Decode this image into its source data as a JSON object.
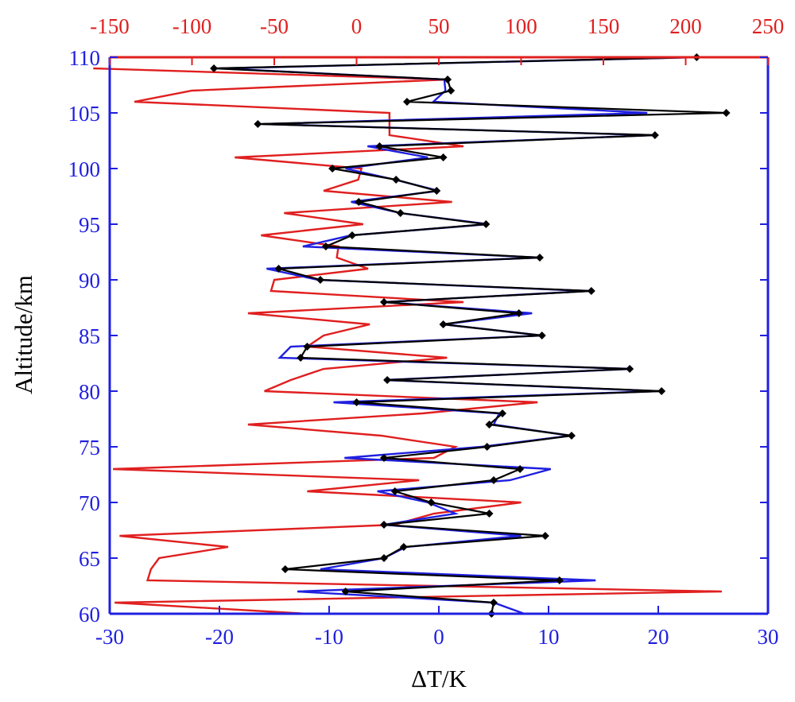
{
  "chart_data": {
    "type": "line",
    "title": "",
    "xlabel": "ΔT/K",
    "ylabel": "Altitude/km",
    "xlim": [
      -30,
      30
    ],
    "ylim": [
      60,
      110
    ],
    "xlim_top": [
      -150,
      250
    ],
    "x_ticks": [
      "-30",
      "-20",
      "-10",
      "0",
      "10",
      "20",
      "30"
    ],
    "x_top_ticks": [
      "-150",
      "-100",
      "-50",
      "0",
      "50",
      "100",
      "150",
      "200",
      "250"
    ],
    "y_ticks": [
      "60",
      "65",
      "70",
      "75",
      "80",
      "85",
      "90",
      "95",
      "100",
      "105",
      "110"
    ],
    "grid": false,
    "legend": "none",
    "colors": {
      "axis_primary": "#1f1fe0",
      "axis_top": "#e01f1f",
      "marker_series": "#000000"
    },
    "series": [
      {
        "color": "#000000",
        "axis": "bottom",
        "markers": "diamond",
        "points": [
          {
            "y": 60,
            "x": 4.8
          },
          {
            "y": 61,
            "x": 5.0
          },
          {
            "y": 62,
            "x": -8.5
          },
          {
            "y": 63,
            "x": 11.0
          },
          {
            "y": 64,
            "x": -14.0
          },
          {
            "y": 65,
            "x": -5.0
          },
          {
            "y": 66,
            "x": -3.2
          },
          {
            "y": 67,
            "x": 9.7
          },
          {
            "y": 68,
            "x": -5.0
          },
          {
            "y": 69,
            "x": 4.6
          },
          {
            "y": 70,
            "x": -0.7
          },
          {
            "y": 71,
            "x": -4.0
          },
          {
            "y": 72,
            "x": 5.0
          },
          {
            "y": 73,
            "x": 7.4
          },
          {
            "y": 74,
            "x": -5.0
          },
          {
            "y": 75,
            "x": 4.4
          },
          {
            "y": 76,
            "x": 12.1
          },
          {
            "y": 77,
            "x": 4.6
          },
          {
            "y": 78,
            "x": 5.8
          },
          {
            "y": 79,
            "x": -7.5
          },
          {
            "y": 80,
            "x": 20.3
          },
          {
            "y": 81,
            "x": -4.7
          },
          {
            "y": 82,
            "x": 17.4
          },
          {
            "y": 83,
            "x": -12.6
          },
          {
            "y": 84,
            "x": -12.0
          },
          {
            "y": 85,
            "x": 9.4
          },
          {
            "y": 86,
            "x": 0.4
          },
          {
            "y": 87,
            "x": 7.3
          },
          {
            "y": 88,
            "x": -5.0
          },
          {
            "y": 89,
            "x": 13.9
          },
          {
            "y": 90,
            "x": -10.8
          },
          {
            "y": 91,
            "x": -14.6
          },
          {
            "y": 92,
            "x": 9.2
          },
          {
            "y": 93,
            "x": -10.3
          },
          {
            "y": 94,
            "x": -7.9
          },
          {
            "y": 95,
            "x": 4.3
          },
          {
            "y": 96,
            "x": -3.5
          },
          {
            "y": 97,
            "x": -7.3
          },
          {
            "y": 98,
            "x": -0.2
          },
          {
            "y": 99,
            "x": -3.9
          },
          {
            "y": 100,
            "x": -9.7
          },
          {
            "y": 101,
            "x": 0.4
          },
          {
            "y": 102,
            "x": -5.4
          },
          {
            "y": 103,
            "x": 19.7
          },
          {
            "y": 104,
            "x": -16.5
          },
          {
            "y": 105,
            "x": 26.2
          },
          {
            "y": 106,
            "x": -2.9
          },
          {
            "y": 107,
            "x": 1.1
          },
          {
            "y": 108,
            "x": 0.8
          },
          {
            "y": 109,
            "x": -20.5
          },
          {
            "y": 110,
            "x": 23.5
          }
        ]
      },
      {
        "color": "#1f1fe0",
        "axis": "bottom",
        "markers": "none",
        "points": [
          {
            "y": 60,
            "x": 7.8
          },
          {
            "y": 61,
            "x": 5.0
          },
          {
            "y": 62,
            "x": -12.9
          },
          {
            "y": 63,
            "x": 14.3
          },
          {
            "y": 64,
            "x": -10.8
          },
          {
            "y": 65,
            "x": -5.0
          },
          {
            "y": 66,
            "x": -3.0
          },
          {
            "y": 67,
            "x": 7.5
          },
          {
            "y": 68,
            "x": -5.0
          },
          {
            "y": 69,
            "x": 1.5
          },
          {
            "y": 70,
            "x": -1.0
          },
          {
            "y": 71,
            "x": -5.6
          },
          {
            "y": 72,
            "x": 6.5
          },
          {
            "y": 73,
            "x": 10.2
          },
          {
            "y": 74,
            "x": -8.6
          },
          {
            "y": 75,
            "x": 3.9
          },
          {
            "y": 76,
            "x": 12.0
          },
          {
            "y": 77,
            "x": 5.0
          },
          {
            "y": 78,
            "x": 5.5
          },
          {
            "y": 79,
            "x": -9.6
          },
          {
            "y": 80,
            "x": 20.0
          },
          {
            "y": 81,
            "x": -5.0
          },
          {
            "y": 82,
            "x": 17.6
          },
          {
            "y": 83,
            "x": -14.5
          },
          {
            "y": 84,
            "x": -13.5
          },
          {
            "y": 85,
            "x": 9.4
          },
          {
            "y": 86,
            "x": 0.4
          },
          {
            "y": 87,
            "x": 8.5
          },
          {
            "y": 88,
            "x": -5.0
          },
          {
            "y": 89,
            "x": 13.7
          },
          {
            "y": 90,
            "x": -11.0
          },
          {
            "y": 91,
            "x": -15.7
          },
          {
            "y": 92,
            "x": 9.2
          },
          {
            "y": 93,
            "x": -12.4
          },
          {
            "y": 94,
            "x": -8.0
          },
          {
            "y": 95,
            "x": 4.5
          },
          {
            "y": 96,
            "x": -3.5
          },
          {
            "y": 97,
            "x": -8.0
          },
          {
            "y": 98,
            "x": 0.0
          },
          {
            "y": 99,
            "x": -4.0
          },
          {
            "y": 100,
            "x": -8.5
          },
          {
            "y": 101,
            "x": -1.0
          },
          {
            "y": 102,
            "x": -6.5
          },
          {
            "y": 103,
            "x": 19.6
          },
          {
            "y": 104,
            "x": -16.0
          },
          {
            "y": 105,
            "x": 19.0
          },
          {
            "y": 106,
            "x": -0.5
          },
          {
            "y": 107,
            "x": 0.6
          },
          {
            "y": 108,
            "x": 0.5
          },
          {
            "y": 109,
            "x": -20.0
          },
          {
            "y": 110,
            "x": 23.5
          }
        ]
      },
      {
        "color": "#e01f1f",
        "axis": "top",
        "markers": "none",
        "points": [
          {
            "y": 60,
            "x": -30
          },
          {
            "y": 61,
            "x": -147
          },
          {
            "y": 62,
            "x": 222
          },
          {
            "y": 63,
            "x": -127
          },
          {
            "y": 64,
            "x": -125
          },
          {
            "y": 65,
            "x": -120
          },
          {
            "y": 66,
            "x": -78
          },
          {
            "y": 67,
            "x": -144
          },
          {
            "y": 68,
            "x": 23
          },
          {
            "y": 69,
            "x": 47
          },
          {
            "y": 70,
            "x": 100
          },
          {
            "y": 71,
            "x": -30
          },
          {
            "y": 72,
            "x": 38
          },
          {
            "y": 73,
            "x": -148
          },
          {
            "y": 74,
            "x": 47
          },
          {
            "y": 75,
            "x": 60
          },
          {
            "y": 76,
            "x": 15
          },
          {
            "y": 77,
            "x": -66
          },
          {
            "y": 78,
            "x": 40
          },
          {
            "y": 79,
            "x": 110
          },
          {
            "y": 80,
            "x": -56
          },
          {
            "y": 81,
            "x": -40
          },
          {
            "y": 82,
            "x": -20
          },
          {
            "y": 83,
            "x": 55
          },
          {
            "y": 84,
            "x": -30
          },
          {
            "y": 85,
            "x": -20
          },
          {
            "y": 86,
            "x": 8
          },
          {
            "y": 87,
            "x": -66
          },
          {
            "y": 88,
            "x": 65
          },
          {
            "y": 89,
            "x": -52
          },
          {
            "y": 90,
            "x": -50
          },
          {
            "y": 91,
            "x": 7
          },
          {
            "y": 92,
            "x": -12
          },
          {
            "y": 93,
            "x": -11
          },
          {
            "y": 94,
            "x": -58
          },
          {
            "y": 95,
            "x": 4
          },
          {
            "y": 96,
            "x": -44
          },
          {
            "y": 97,
            "x": 58
          },
          {
            "y": 98,
            "x": -20
          },
          {
            "y": 99,
            "x": 1
          },
          {
            "y": 100,
            "x": 3
          },
          {
            "y": 101,
            "x": -74
          },
          {
            "y": 102,
            "x": 65
          },
          {
            "y": 103,
            "x": 20
          },
          {
            "y": 104,
            "x": 20
          },
          {
            "y": 105,
            "x": 20
          },
          {
            "y": 106,
            "x": -135
          },
          {
            "y": 107,
            "x": -100
          },
          {
            "y": 108,
            "x": 55
          },
          {
            "y": 109,
            "x": -160
          }
        ]
      }
    ]
  }
}
